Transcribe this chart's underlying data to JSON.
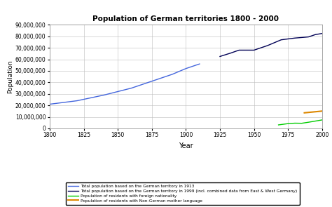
{
  "title": "Population of German territories 1800 - 2000",
  "xlabel": "Year",
  "ylabel": "Population",
  "xlim": [
    1800,
    2000
  ],
  "ylim": [
    0,
    90000000
  ],
  "yticks": [
    0,
    10000000,
    20000000,
    30000000,
    40000000,
    50000000,
    60000000,
    70000000,
    80000000,
    90000000
  ],
  "xticks": [
    1800,
    1825,
    1850,
    1875,
    1900,
    1925,
    1950,
    1975,
    2000
  ],
  "series1_label": "Total population based on the German territory in 1913",
  "series1_color": "#4466dd",
  "series1_x": [
    1800,
    1810,
    1820,
    1830,
    1840,
    1850,
    1860,
    1870,
    1880,
    1890,
    1900,
    1910
  ],
  "series1_y": [
    21000000,
    22500000,
    24000000,
    26500000,
    29000000,
    32000000,
    35000000,
    39000000,
    43000000,
    47000000,
    52000000,
    56000000
  ],
  "series2_label": "Total population based on the German territory in 1999 (incl. combined data from East & West Germany)",
  "series2_color": "#000055",
  "series2_x": [
    1925,
    1933,
    1939,
    1950,
    1960,
    1970,
    1980,
    1990,
    1995,
    2000
  ],
  "series2_y": [
    62500000,
    65500000,
    68000000,
    68000000,
    72000000,
    77000000,
    78500000,
    79500000,
    81500000,
    82500000
  ],
  "series3_label": "Population of residents with foreign nationality",
  "series3_color": "#00cc00",
  "series3_x": [
    1968,
    1975,
    1980,
    1985,
    1990,
    2000
  ],
  "series3_y": [
    3000000,
    4100000,
    4500000,
    4400000,
    5300000,
    7300000
  ],
  "series4_label": "Population of residents with Non-German mother language",
  "series4_color": "#dd8800",
  "series4_x": [
    1987,
    2000
  ],
  "series4_y": [
    13500000,
    15000000
  ],
  "bg_color": "#ffffff",
  "grid_color": "#bbbbbb"
}
